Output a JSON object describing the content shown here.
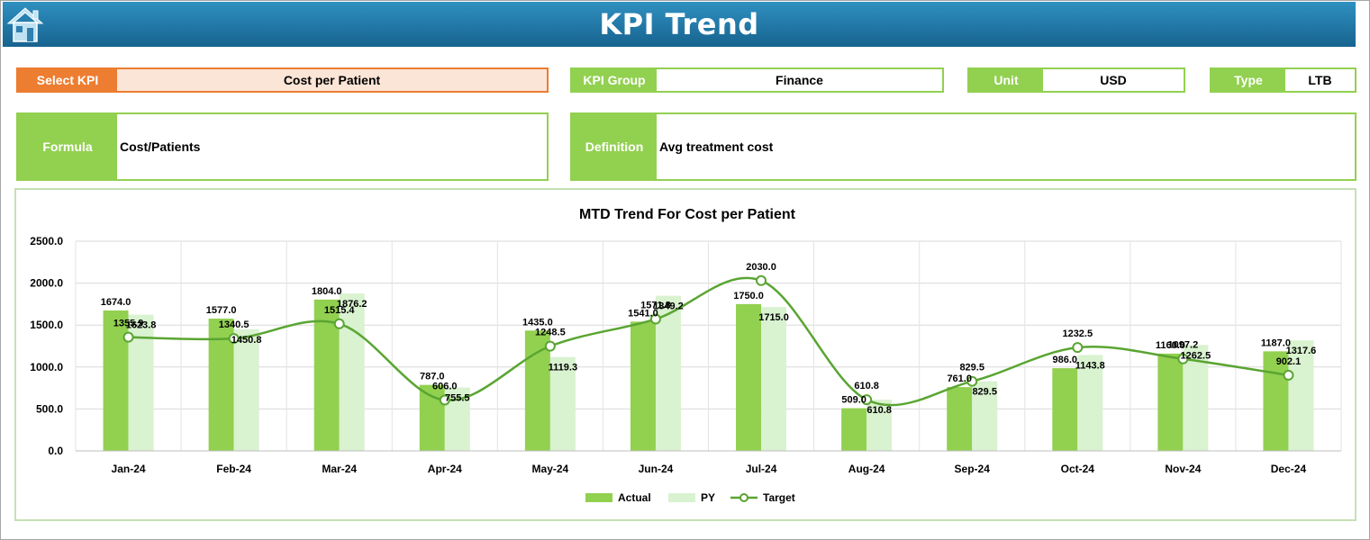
{
  "header": {
    "title": "KPI Trend"
  },
  "select_kpi": {
    "label": "Select KPI",
    "value": "Cost per Patient"
  },
  "kpi_group": {
    "label": "KPI Group",
    "value": "Finance"
  },
  "unit": {
    "label": "Unit",
    "value": "USD"
  },
  "type": {
    "label": "Type",
    "value": "LTB"
  },
  "formula": {
    "label": "Formula",
    "value": "Cost/Patients"
  },
  "definition": {
    "label": "Definition",
    "value": "Avg treatment cost"
  },
  "colors": {
    "header": "#1f77a8",
    "accent": "#92d050",
    "select": "#ed7d31",
    "actual": "#92d050",
    "py": "#d9f2d0",
    "target": "#5aa532"
  },
  "chart_data": {
    "type": "bar",
    "title": "MTD Trend For Cost per Patient",
    "categories": [
      "Jan-24",
      "Feb-24",
      "Mar-24",
      "Apr-24",
      "May-24",
      "Jun-24",
      "Jul-24",
      "Aug-24",
      "Sep-24",
      "Oct-24",
      "Nov-24",
      "Dec-24"
    ],
    "series": [
      {
        "name": "Actual",
        "type": "bar",
        "values": [
          1674.0,
          1577.0,
          1804.0,
          787.0,
          1435.0,
          1541.0,
          1750.0,
          509.0,
          761.0,
          986.0,
          1160.0,
          1187.0
        ],
        "labels": [
          "1674.0",
          "1577.0",
          "1804.0",
          "787.0",
          "1435.0",
          "1541.0",
          "1750.0",
          "509.0",
          "761.0",
          "986.0",
          "1160.0",
          "1187.0"
        ]
      },
      {
        "name": "PY",
        "type": "bar",
        "values": [
          1623.8,
          1450.8,
          1876.2,
          755.5,
          1119.3,
          1849.2,
          1715.0,
          610.8,
          829.5,
          1143.8,
          1262.5,
          1317.6
        ],
        "labels": [
          "1623.8",
          "1450.8",
          "1876.2",
          "755.5",
          "1119.3",
          "1849.2",
          "1715.0",
          "610.8",
          "829.5",
          "1143.8",
          "1262.5",
          "1317.6"
        ]
      },
      {
        "name": "Target",
        "type": "line",
        "values": [
          1355.9,
          1340.5,
          1515.4,
          606.0,
          1248.5,
          1571.8,
          2030.0,
          610.8,
          829.5,
          1232.5,
          1097.2,
          902.1
        ],
        "labels": [
          "1355.9",
          "1340.5",
          "1515.4",
          "606.0",
          "1248.5",
          "1571.8",
          "2030.0",
          "610.8",
          "829.5",
          "1232.5",
          "1097.2",
          "902.1"
        ]
      }
    ],
    "yticks": [
      "0.0",
      "500.0",
      "1000.0",
      "1500.0",
      "2000.0",
      "2500.0"
    ],
    "ylim": [
      0,
      2500
    ],
    "grid": true,
    "legend_position": "bottom"
  }
}
